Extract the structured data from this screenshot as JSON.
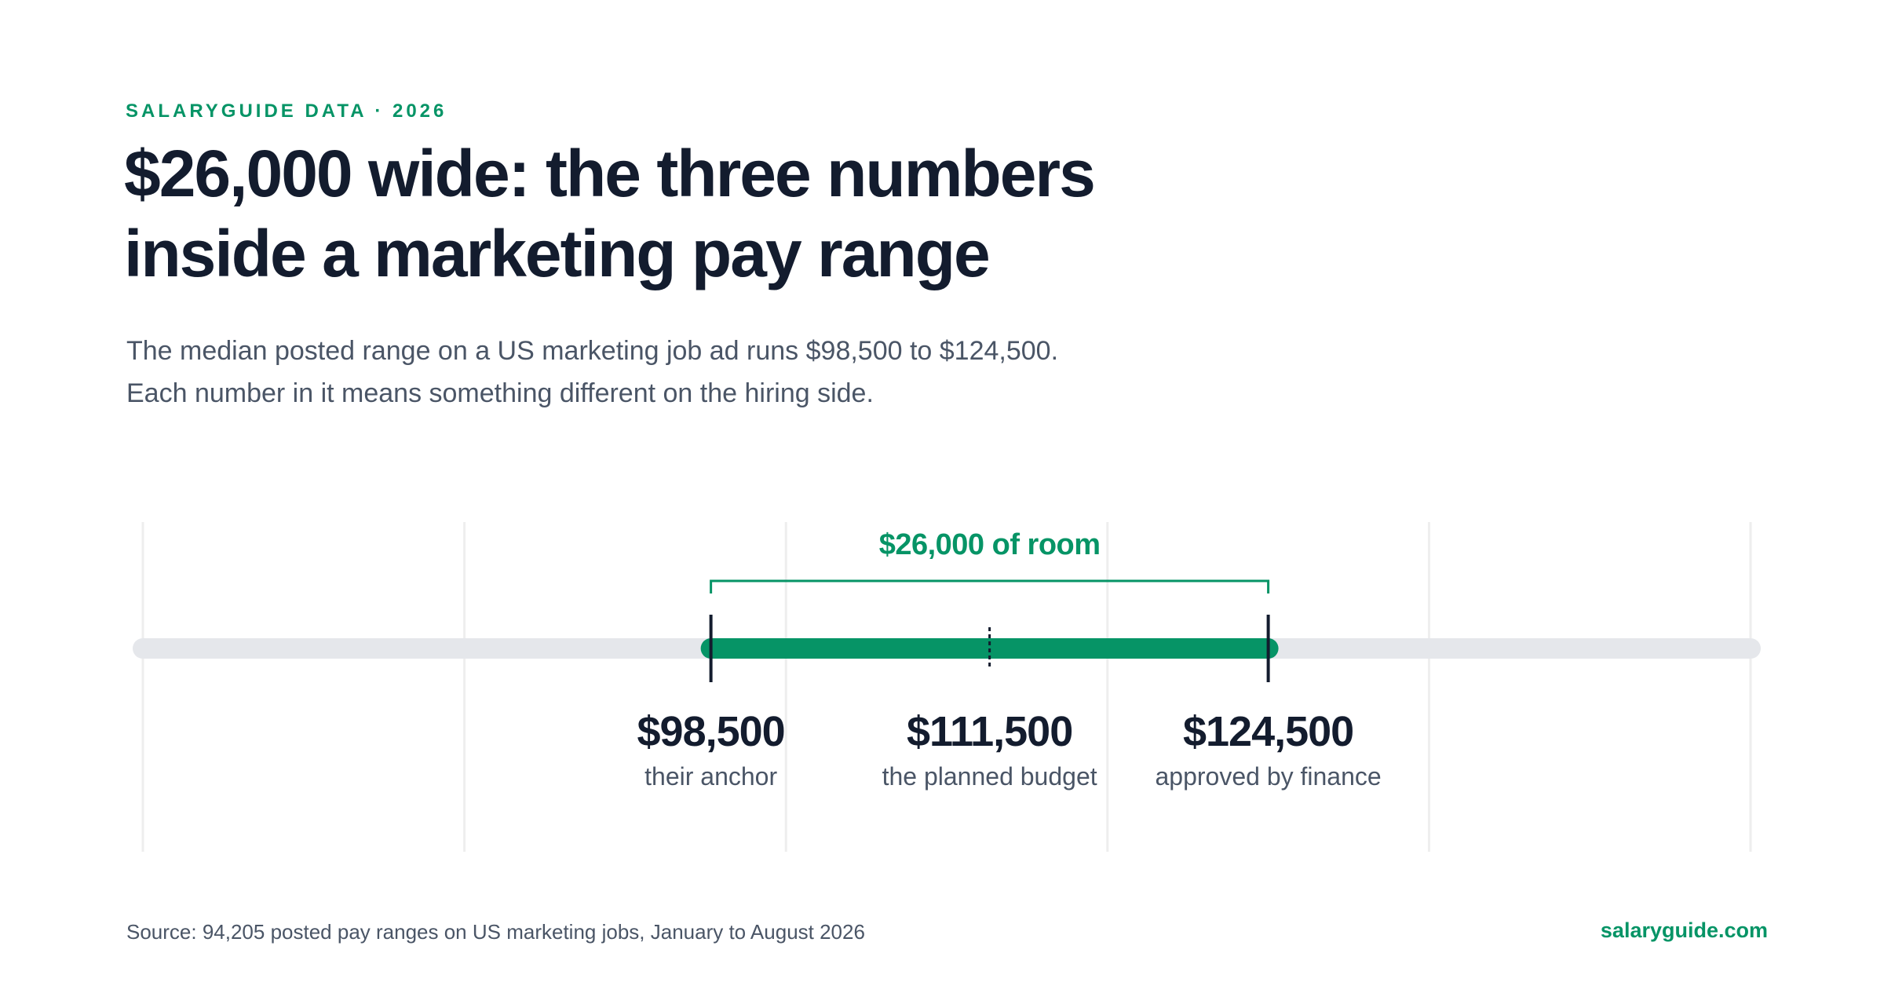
{
  "header": {
    "eyebrow": "SALARYGUIDE DATA · 2026",
    "title_line_1": "$26,000 wide: the three numbers",
    "title_line_2": "inside a marketing pay range",
    "subtitle_line_1": "The median posted range on a US marketing job ad runs $98,500 to $124,500.",
    "subtitle_line_2": "Each number in it means something different on the hiring side."
  },
  "footer": {
    "source": "Source: 94,205 posted pay ranges on US marketing jobs, January to August 2026",
    "brand": "salaryguide.com"
  },
  "colors": {
    "accent": "#069466",
    "ink": "#131c2e",
    "muted": "#4a5566",
    "track": "#e5e7eb",
    "grid": "#eeeeee"
  },
  "chart_data": {
    "type": "range",
    "xlim": [
      72000,
      147000
    ],
    "gridlines": [
      72000,
      87000,
      102000,
      117000,
      132000,
      147000
    ],
    "range": {
      "low": 98500,
      "high": 124500
    },
    "bracket_label": "$26,000 of room",
    "markers": [
      {
        "value": 98500,
        "value_label": "$98,500",
        "caption": "their anchor",
        "style": "solid"
      },
      {
        "value": 111500,
        "value_label": "$111,500",
        "caption": "the planned budget",
        "style": "dashed"
      },
      {
        "value": 124500,
        "value_label": "$124,500",
        "caption": "approved by finance",
        "style": "solid"
      }
    ],
    "grid": true
  }
}
